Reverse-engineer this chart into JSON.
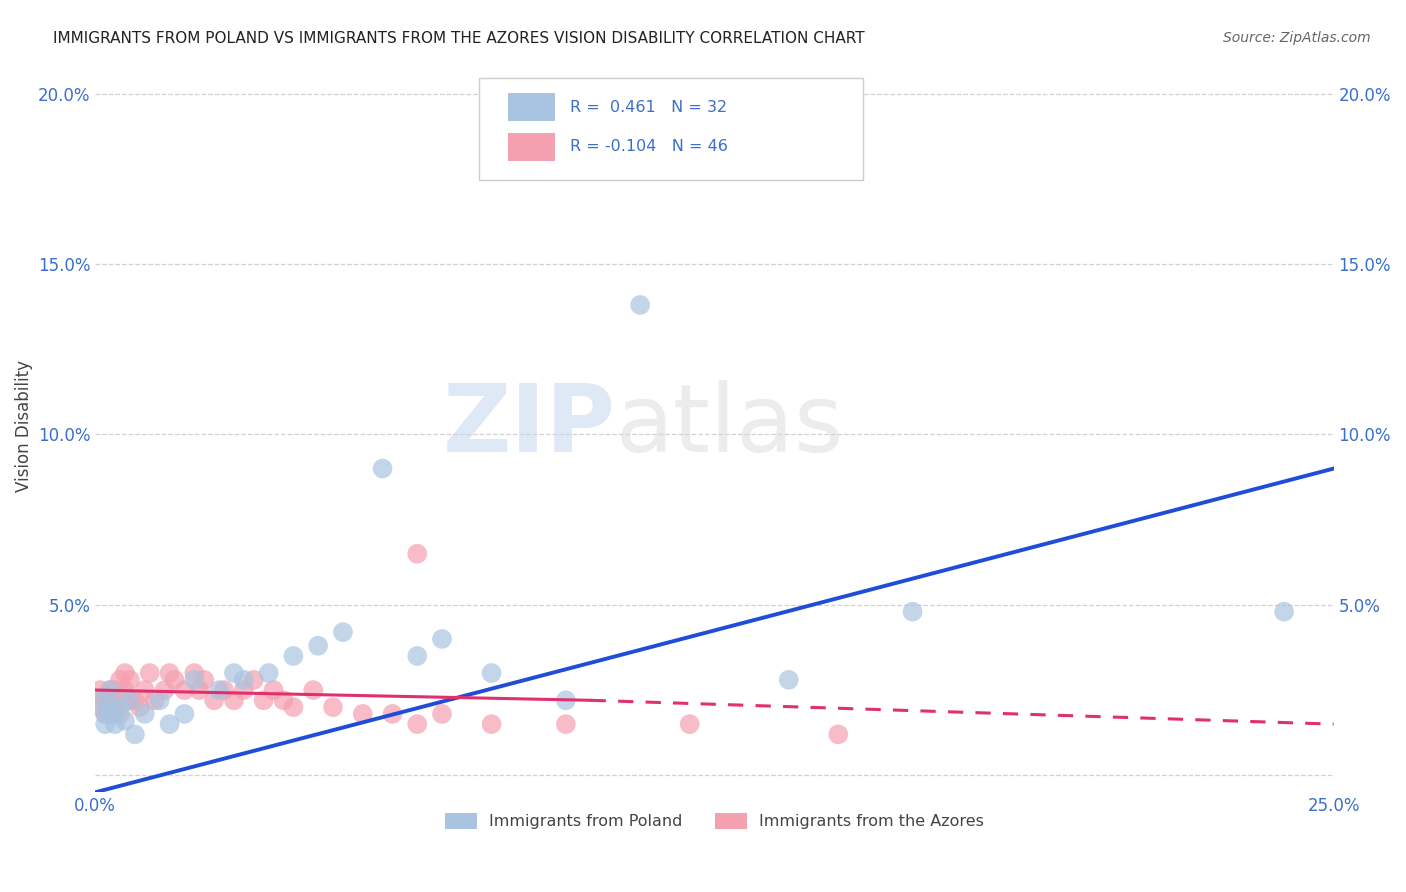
{
  "title": "IMMIGRANTS FROM POLAND VS IMMIGRANTS FROM THE AZORES VISION DISABILITY CORRELATION CHART",
  "source": "Source: ZipAtlas.com",
  "ylabel": "Vision Disability",
  "xlim": [
    0.0,
    0.25
  ],
  "ylim": [
    -0.005,
    0.21
  ],
  "yticks": [
    0.0,
    0.05,
    0.1,
    0.15,
    0.2
  ],
  "xticks": [
    0.0,
    0.05,
    0.1,
    0.15,
    0.2,
    0.25
  ],
  "ytick_labels_left": [
    "",
    "5.0%",
    "10.0%",
    "15.0%",
    "20.0%"
  ],
  "ytick_labels_right": [
    "",
    "5.0%",
    "10.0%",
    "15.0%",
    "20.0%"
  ],
  "xtick_labels": [
    "0.0%",
    "",
    "",
    "",
    "",
    "25.0%"
  ],
  "poland_R": 0.461,
  "poland_N": 32,
  "azores_R": -0.104,
  "azores_N": 46,
  "poland_color": "#a8c4e0",
  "azores_color": "#f4a0b0",
  "poland_line_color": "#1f4dd8",
  "azores_line_color": "#e03070",
  "legend_label_poland": "Immigrants from Poland",
  "legend_label_azores": "Immigrants from the Azores",
  "poland_x": [
    0.001,
    0.002,
    0.002,
    0.003,
    0.003,
    0.004,
    0.004,
    0.005,
    0.006,
    0.007,
    0.008,
    0.01,
    0.013,
    0.015,
    0.018,
    0.02,
    0.025,
    0.028,
    0.03,
    0.035,
    0.04,
    0.045,
    0.05,
    0.058,
    0.065,
    0.07,
    0.08,
    0.095,
    0.11,
    0.14,
    0.165,
    0.24
  ],
  "poland_y": [
    0.022,
    0.018,
    0.015,
    0.025,
    0.02,
    0.018,
    0.015,
    0.02,
    0.016,
    0.022,
    0.012,
    0.018,
    0.022,
    0.015,
    0.018,
    0.028,
    0.025,
    0.03,
    0.028,
    0.03,
    0.035,
    0.038,
    0.042,
    0.09,
    0.035,
    0.04,
    0.03,
    0.022,
    0.138,
    0.028,
    0.048,
    0.048
  ],
  "azores_x": [
    0.001,
    0.001,
    0.002,
    0.002,
    0.003,
    0.003,
    0.004,
    0.004,
    0.005,
    0.005,
    0.006,
    0.006,
    0.007,
    0.007,
    0.008,
    0.009,
    0.01,
    0.011,
    0.012,
    0.014,
    0.015,
    0.016,
    0.018,
    0.02,
    0.021,
    0.022,
    0.024,
    0.026,
    0.028,
    0.03,
    0.032,
    0.034,
    0.036,
    0.038,
    0.04,
    0.044,
    0.048,
    0.054,
    0.06,
    0.065,
    0.07,
    0.08,
    0.095,
    0.12,
    0.15,
    0.065
  ],
  "azores_y": [
    0.02,
    0.025,
    0.022,
    0.018,
    0.025,
    0.022,
    0.02,
    0.025,
    0.028,
    0.018,
    0.025,
    0.03,
    0.022,
    0.028,
    0.022,
    0.02,
    0.025,
    0.03,
    0.022,
    0.025,
    0.03,
    0.028,
    0.025,
    0.03,
    0.025,
    0.028,
    0.022,
    0.025,
    0.022,
    0.025,
    0.028,
    0.022,
    0.025,
    0.022,
    0.02,
    0.025,
    0.02,
    0.018,
    0.018,
    0.015,
    0.018,
    0.015,
    0.015,
    0.015,
    0.012,
    0.065
  ],
  "poland_line_x0": 0.0,
  "poland_line_y0": -0.005,
  "poland_line_x1": 0.25,
  "poland_line_y1": 0.09,
  "azores_line_x0": 0.0,
  "azores_line_y0": 0.025,
  "azores_line_x1": 0.25,
  "azores_line_y1": 0.015
}
